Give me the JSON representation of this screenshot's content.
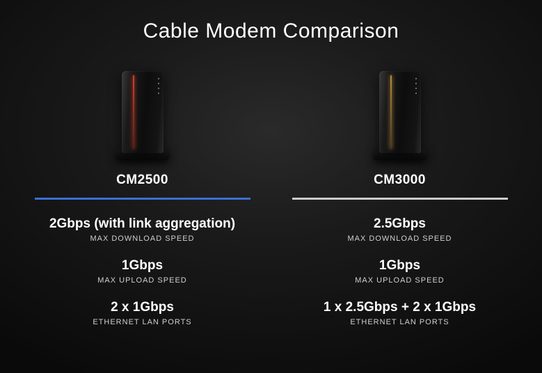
{
  "title": "Cable Modem Comparison",
  "colors": {
    "background_center": "#2a2a2a",
    "background_edge": "#0a0a0a",
    "text_primary": "#ffffff",
    "text_secondary": "#d0d0d0",
    "divider_left": "#3b6fd6",
    "divider_right": "#cccccc",
    "led_left": "#ff4a2e",
    "led_right": "#e0a94a"
  },
  "typography": {
    "title_fontsize": 30,
    "title_weight": 300,
    "model_fontsize": 19,
    "model_weight": 600,
    "spec_value_fontsize": 19,
    "spec_value_weight": 600,
    "spec_label_fontsize": 11,
    "spec_label_letterspacing": 1
  },
  "products": [
    {
      "model": "CM2500",
      "led_color": "#ff4a2e",
      "divider_color": "#3b6fd6",
      "specs": [
        {
          "value": "2Gbps (with link aggregation)",
          "label": "MAX DOWNLOAD SPEED"
        },
        {
          "value": "1Gbps",
          "label": "MAX UPLOAD SPEED"
        },
        {
          "value": "2 x 1Gbps",
          "label": "ETHERNET LAN PORTS"
        }
      ]
    },
    {
      "model": "CM3000",
      "led_color": "#e0a94a",
      "divider_color": "#cccccc",
      "specs": [
        {
          "value": "2.5Gbps",
          "label": "MAX DOWNLOAD SPEED"
        },
        {
          "value": "1Gbps",
          "label": "MAX UPLOAD SPEED"
        },
        {
          "value": "1 x 2.5Gbps + 2 x 1Gbps",
          "label": "ETHERNET LAN PORTS"
        }
      ]
    }
  ]
}
